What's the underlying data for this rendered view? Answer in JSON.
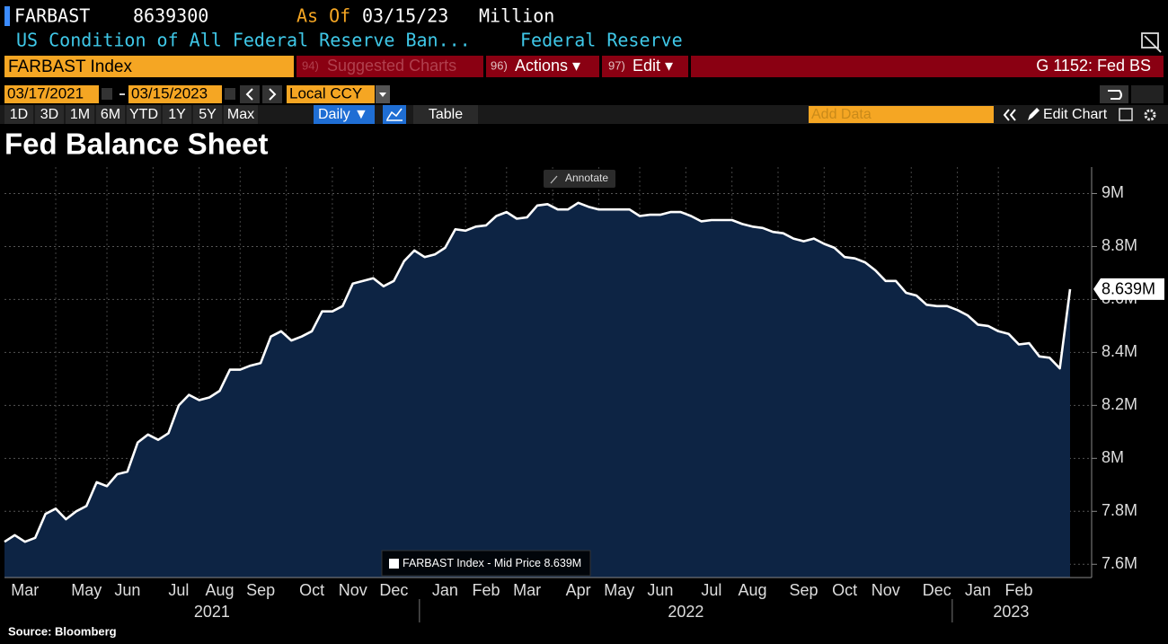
{
  "header": {
    "ticker": "FARBAST",
    "value": 8639300,
    "as_of_label": "As Of",
    "as_of": "03/15/23",
    "units": "Million",
    "description": "US Condition of All Federal Reserve Ban...",
    "source": "Federal Reserve"
  },
  "menu": {
    "security": "FARBAST Index",
    "suggested_code": "94)",
    "suggested": "Suggested Charts",
    "actions_code": "96)",
    "actions": "Actions ▾",
    "edit_code": "97)",
    "edit": "Edit ▾",
    "page": "G 1152: Fed BS"
  },
  "controls": {
    "start_date": "03/17/2021",
    "end_date": "03/15/2023",
    "currency": "Local CCY",
    "periods": [
      "1D",
      "3D",
      "1M",
      "6M",
      "YTD",
      "1Y",
      "5Y",
      "Max"
    ],
    "frequency": "Daily ▼",
    "table": "Table",
    "add_data": "Add Data",
    "edit_chart": "Edit Chart",
    "annotate": "Annotate"
  },
  "chart_data": {
    "type": "area",
    "title": "Fed Balance Sheet",
    "source": "Source: Bloomberg",
    "categories": [
      null,
      null,
      "Mar",
      null,
      null,
      null,
      null,
      null,
      "May",
      null,
      null,
      null,
      "Jun",
      null,
      null,
      null,
      null,
      "Jul",
      null,
      null,
      null,
      "Aug",
      null,
      null,
      null,
      "Sep",
      null,
      null,
      null,
      null,
      "Oct",
      null,
      null,
      null,
      "Nov",
      null,
      null,
      null,
      "Dec",
      null,
      null,
      null,
      null,
      "Jan",
      null,
      null,
      null,
      "Feb",
      null,
      null,
      null,
      "Mar",
      null,
      null,
      null,
      null,
      "Apr",
      null,
      null,
      null,
      "May",
      null,
      null,
      null,
      "Jun",
      null,
      null,
      null,
      null,
      "Jul",
      null,
      null,
      null,
      "Aug",
      null,
      null,
      null,
      null,
      "Sep",
      null,
      null,
      null,
      "Oct",
      null,
      null,
      null,
      "Nov",
      null,
      null,
      null,
      null,
      "Dec",
      null,
      null,
      null,
      "Jan",
      null,
      null,
      null,
      "Feb",
      null,
      null,
      null,
      null,
      null
    ],
    "years": [
      "2021",
      "2022",
      "2023"
    ],
    "series": [
      {
        "name": "FARBAST Index - Mid Price",
        "color": "#ffffff",
        "fill": "#0d2444",
        "last_label": "8.639M",
        "values": [
          7.685,
          7.71,
          7.685,
          7.7,
          7.79,
          7.81,
          7.77,
          7.8,
          7.82,
          7.91,
          7.895,
          7.94,
          7.95,
          8.06,
          8.09,
          8.07,
          8.095,
          8.2,
          8.24,
          8.22,
          8.23,
          8.255,
          8.335,
          8.335,
          8.35,
          8.36,
          8.46,
          8.48,
          8.445,
          8.46,
          8.48,
          8.555,
          8.555,
          8.575,
          8.66,
          8.67,
          8.68,
          8.65,
          8.67,
          8.745,
          8.785,
          8.76,
          8.77,
          8.795,
          8.865,
          8.86,
          8.875,
          8.88,
          8.915,
          8.93,
          8.905,
          8.91,
          8.955,
          8.96,
          8.94,
          8.94,
          8.965,
          8.95,
          8.94,
          8.94,
          8.94,
          8.94,
          8.915,
          8.92,
          8.92,
          8.93,
          8.93,
          8.915,
          8.895,
          8.9,
          8.9,
          8.9,
          8.885,
          8.875,
          8.87,
          8.855,
          8.85,
          8.83,
          8.82,
          8.83,
          8.81,
          8.795,
          8.76,
          8.755,
          8.74,
          8.71,
          8.67,
          8.67,
          8.625,
          8.615,
          8.58,
          8.575,
          8.575,
          8.56,
          8.54,
          8.505,
          8.5,
          8.48,
          8.47,
          8.43,
          8.435,
          8.385,
          8.38,
          8.34,
          8.639
        ]
      }
    ],
    "ylim": [
      7.55,
      9.1
    ],
    "yticks": [
      {
        "value": 7.6,
        "label": "7.6M"
      },
      {
        "value": 7.8,
        "label": "7.8M"
      },
      {
        "value": 8,
        "label": "8M"
      },
      {
        "value": 8.2,
        "label": "8.2M"
      },
      {
        "value": 8.4,
        "label": "8.4M"
      },
      {
        "value": 8.6,
        "label": "8.6M"
      },
      {
        "value": 8.8,
        "label": "8.8M"
      },
      {
        "value": 9,
        "label": "9M"
      }
    ],
    "grid": true
  }
}
